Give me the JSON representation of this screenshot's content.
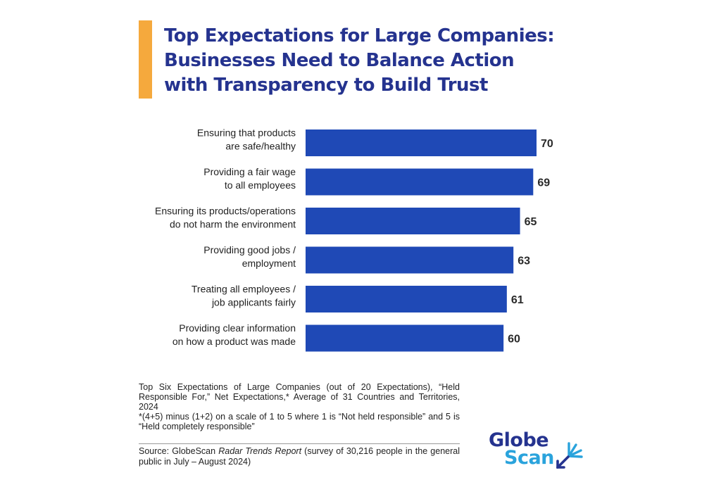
{
  "title": {
    "lines": [
      "Top Expectations for Large Companies:",
      "Businesses Need to Balance Action",
      "with Transparency to Build Trust"
    ]
  },
  "colors": {
    "accent": "#f5a93d",
    "title": "#25338f",
    "bar": "#1f49b6",
    "logo_dark": "#25338f",
    "logo_light": "#2aa3dc"
  },
  "chart_data": {
    "type": "bar",
    "orientation": "horizontal",
    "categories": [
      [
        "Ensuring that products",
        "are safe/healthy"
      ],
      [
        "Providing a fair wage",
        "to all employees"
      ],
      [
        "Ensuring its products/operations",
        "do not harm the environment"
      ],
      [
        "Providing good jobs /",
        "employment"
      ],
      [
        "Treating all employees /",
        "job applicants fairly"
      ],
      [
        "Providing clear information",
        "on how a product was made"
      ]
    ],
    "values": [
      70,
      69,
      65,
      63,
      61,
      60
    ],
    "data_labels": [
      "70",
      "69",
      "65",
      "63",
      "61",
      "60"
    ],
    "xlim": [
      0,
      70
    ],
    "grid": false,
    "legend": "none"
  },
  "notes": {
    "line1": "Top Six Expectations of Large Companies (out of 20 Expectations), “Held Responsible For,” Net Expectations,* Average of 31 Countries and Territories, 2024",
    "line2": "*(4+5) minus (1+2) on a scale of 1 to 5 where 1 is “Not held responsible” and 5 is “Held completely responsible”"
  },
  "source": {
    "prefix": "Source: GlobeScan ",
    "italic": "Radar Trends Report",
    "suffix": " (survey of 30,216 people in the general public in July – August 2024)"
  },
  "logo": {
    "word1": "Globe",
    "word2": "Scan",
    "icon": "starburst-arrow-icon"
  }
}
